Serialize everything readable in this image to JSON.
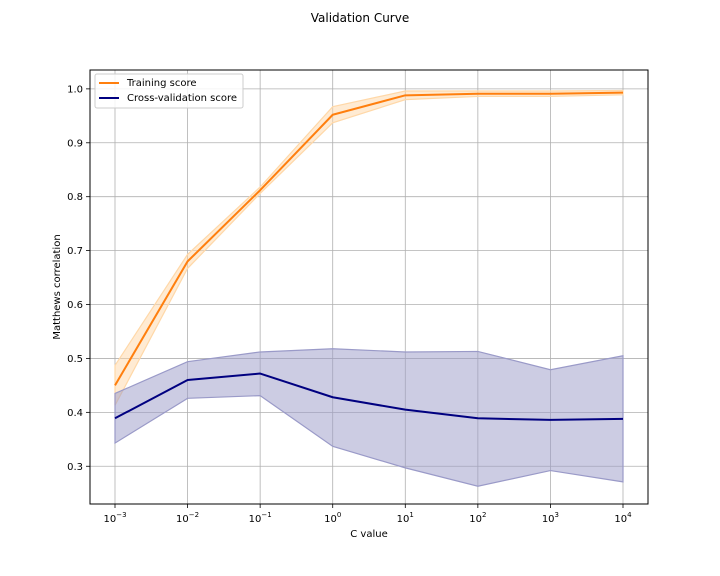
{
  "chart_data": {
    "type": "line",
    "title": "Validation Curve",
    "xlabel": "C value",
    "ylabel": "Matthews correlation",
    "x_scale": "log",
    "x": [
      0.001,
      0.01,
      0.1,
      1,
      10,
      100,
      1000,
      10000
    ],
    "x_tick_labels": [
      {
        "base": "10",
        "exp": "−3"
      },
      {
        "base": "10",
        "exp": "−2"
      },
      {
        "base": "10",
        "exp": "−1"
      },
      {
        "base": "10",
        "exp": "0"
      },
      {
        "base": "10",
        "exp": "1"
      },
      {
        "base": "10",
        "exp": "2"
      },
      {
        "base": "10",
        "exp": "3"
      },
      {
        "base": "10",
        "exp": "4"
      }
    ],
    "ylim": [
      0.23,
      1.035
    ],
    "y_ticks": [
      "0.3",
      "0.4",
      "0.5",
      "0.6",
      "0.7",
      "0.8",
      "0.9",
      "1.0"
    ],
    "grid": true,
    "legend_position": "top-left",
    "series": [
      {
        "name": "Training score",
        "color": "#ff7f0e",
        "band_color": "#ffd8a8",
        "mean": [
          0.45,
          0.68,
          0.812,
          0.952,
          0.988,
          0.991,
          0.991,
          0.993
        ],
        "upper": [
          0.487,
          0.693,
          0.818,
          0.967,
          0.996,
          0.996,
          0.996,
          0.997
        ],
        "lower": [
          0.413,
          0.667,
          0.806,
          0.937,
          0.98,
          0.986,
          0.986,
          0.989
        ]
      },
      {
        "name": "Cross-validation score",
        "color": "#000080",
        "band_color": "#9a9ac8",
        "mean": [
          0.389,
          0.46,
          0.472,
          0.428,
          0.405,
          0.389,
          0.386,
          0.388
        ],
        "upper": [
          0.435,
          0.494,
          0.512,
          0.518,
          0.512,
          0.513,
          0.479,
          0.505
        ],
        "lower": [
          0.343,
          0.426,
          0.431,
          0.337,
          0.297,
          0.263,
          0.292,
          0.271
        ]
      }
    ]
  }
}
